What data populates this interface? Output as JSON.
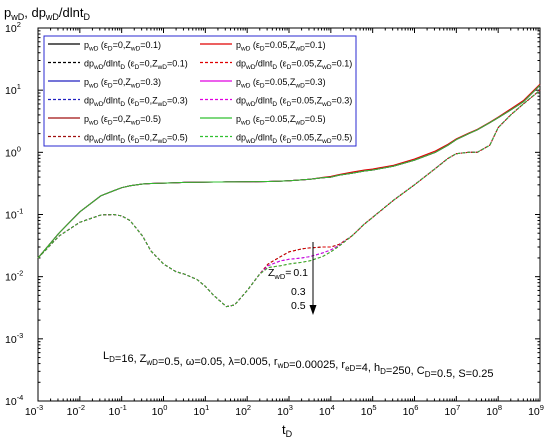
{
  "chart_data": {
    "type": "line",
    "title": "",
    "ylabel_main": "p",
    "ylabel_sub1": "wD",
    "ylabel_mid": ", dp",
    "ylabel_sub2": "wD",
    "ylabel_tail": "/dlnt",
    "ylabel_sub3": "D",
    "xlabel_main": "t",
    "xlabel_sub": "D",
    "x_scale": "log",
    "y_scale": "log",
    "xlim": [
      0.001,
      1000000000
    ],
    "ylim": [
      0.0001,
      100
    ],
    "x_tick_exponents": [
      "-3",
      "-2",
      "-1",
      "0",
      "1",
      "2",
      "3",
      "4",
      "5",
      "6",
      "7",
      "8",
      "9"
    ],
    "y_tick_exponents": [
      "2",
      "1",
      "0",
      "-1",
      "-2",
      "-3",
      "-4"
    ],
    "legend_placement": "top-left",
    "legend": [
      {
        "label": "p_wD (ε_D=0,Z_wD=0.1)",
        "color": "#000000",
        "dash": "solid"
      },
      {
        "label": "p_wD (ε_D=0.05,Z_wD=0.1)",
        "color": "#e00000",
        "dash": "solid"
      },
      {
        "label": "dp_wD/dlnt_D (ε_D=0,Z_wD=0.1)",
        "color": "#000000",
        "dash": "dashed"
      },
      {
        "label": "dp_wD/dlnt_D (ε_D=0.05,Z_wD=0.1)",
        "color": "#e00000",
        "dash": "dashed"
      },
      {
        "label": "p_wD (ε_D=0,Z_wD=0.3)",
        "color": "#2020c0",
        "dash": "solid"
      },
      {
        "label": "p_wD (ε_D=0.05,Z_wD=0.3)",
        "color": "#e000e0",
        "dash": "solid"
      },
      {
        "label": "dp_wD/dlnt_D (ε_D=0,Z_wD=0.3)",
        "color": "#2020c0",
        "dash": "dashed"
      },
      {
        "label": "dp_wD/dlnt_D (ε_D=0.05,Z_wD=0.3)",
        "color": "#e000e0",
        "dash": "dashed"
      },
      {
        "label": "p_wD (ε_D=0,Z_wD=0.5)",
        "color": "#a01010",
        "dash": "solid"
      },
      {
        "label": "p_wD (ε_D=0.05,Z_wD=0.5)",
        "color": "#30c030",
        "dash": "solid"
      },
      {
        "label": "dp_wD/dlnt_D (ε_D=0,Z_wD=0.5)",
        "color": "#a01010",
        "dash": "dashed"
      },
      {
        "label": "dp_wD/dlnt_D (ε_D=0.05,Z_wD=0.5)",
        "color": "#30c030",
        "dash": "dashed"
      }
    ],
    "legend_rows": [
      [
        {
          "a": "p",
          "b": "wD",
          "c": " (ε",
          "d": "D",
          "e": "=0,Z",
          "f": "wD",
          "g": "=0.1)"
        },
        {
          "a": "p",
          "b": "wD",
          "c": " (ε",
          "d": "D",
          "e": "=0.05,Z",
          "f": "wD",
          "g": "=0.1)"
        }
      ],
      [
        {
          "a": "dp",
          "b": "wD",
          "c": "/dlnt",
          "d": "D",
          "e": " (ε",
          "f": "D",
          "g": "=0,Z",
          "h": "wD",
          "i": "=0.1)"
        },
        {
          "a": "dp",
          "b": "wD",
          "c": "/dlnt",
          "d": "D",
          "e": " (ε",
          "f": "D",
          "g": "=0.05,Z",
          "h": "wD",
          "i": "=0.1)"
        }
      ],
      [
        {
          "a": "p",
          "b": "wD",
          "c": " (ε",
          "d": "D",
          "e": "=0,Z",
          "f": "wD",
          "g": "=0.3)"
        },
        {
          "a": "p",
          "b": "wD",
          "c": " (ε",
          "d": "D",
          "e": "=0.05,Z",
          "f": "wD",
          "g": "=0.3)"
        }
      ],
      [
        {
          "a": "dp",
          "b": "wD",
          "c": "/dlnt",
          "d": "D",
          "e": " (ε",
          "f": "D",
          "g": "=0,Z",
          "h": "wD",
          "i": "=0.3)"
        },
        {
          "a": "dp",
          "b": "wD",
          "c": "/dlnt",
          "d": "D",
          "e": " (ε",
          "f": "D",
          "g": "=0.05,Z",
          "h": "wD",
          "i": "=0.3)"
        }
      ],
      [
        {
          "a": "p",
          "b": "wD",
          "c": " (ε",
          "d": "D",
          "e": "=0,Z",
          "f": "wD",
          "g": "=0.5)"
        },
        {
          "a": "p",
          "b": "wD",
          "c": " (ε",
          "d": "D",
          "e": "=0.05,Z",
          "f": "wD",
          "g": "=0.5)"
        }
      ],
      [
        {
          "a": "dp",
          "b": "wD",
          "c": "/dlnt",
          "d": "D",
          "e": " (ε",
          "f": "D",
          "g": "=0,Z",
          "h": "wD",
          "i": "=0.5)"
        },
        {
          "a": "dp",
          "b": "wD",
          "c": "/dlnt",
          "d": "D",
          "e": " (ε",
          "f": "D",
          "g": "=0.05,Z",
          "h": "wD",
          "i": "=0.5)"
        }
      ]
    ],
    "annotation_zwd": {
      "label": "Z",
      "sub": "wD",
      "eq": "=",
      "values": [
        "0.1",
        "0.3",
        "0.5"
      ]
    },
    "params_text": [
      {
        "t": "L",
        "s": "D"
      },
      {
        "t": "=16, Z",
        "s": "wD"
      },
      {
        "t": "=0.5, ω=0.05, λ=0.005, r",
        "s": "wD"
      },
      {
        "t": "=0.00025, r",
        "s": "eD"
      },
      {
        "t": "=4, h",
        "s": "D"
      },
      {
        "t": "=250, C",
        "s": "D"
      },
      {
        "t": "=0.5, S=0.25",
        "s": ""
      }
    ],
    "series_x_log10": [
      -3,
      -2.5,
      -2,
      -1.5,
      -1.2,
      -1,
      -0.8,
      -0.5,
      -0.3,
      0,
      0.3,
      0.5,
      0.8,
      1,
      1.2,
      1.4,
      1.5,
      1.7,
      2,
      2.3,
      2.5,
      2.8,
      3,
      3.3,
      3.5,
      3.8,
      4,
      4.2,
      4.5,
      4.8,
      5,
      5.5,
      6,
      6.5,
      6.8,
      7,
      7.3,
      7.5,
      7.8,
      8,
      8.3,
      8.6,
      9
    ],
    "series": [
      {
        "name": "p_wD (ε_D=0,Z_wD=0.1)",
        "color": "#000000",
        "dash": "solid",
        "y": [
          0.02,
          0.05,
          0.11,
          0.2,
          0.24,
          0.27,
          0.29,
          0.31,
          0.315,
          0.32,
          0.325,
          0.328,
          0.33,
          0.332,
          0.333,
          0.333,
          0.334,
          0.335,
          0.336,
          0.338,
          0.34,
          0.345,
          0.35,
          0.36,
          0.37,
          0.39,
          0.4,
          0.43,
          0.46,
          0.5,
          0.52,
          0.6,
          0.75,
          1.0,
          1.3,
          1.6,
          2.0,
          2.3,
          3.0,
          3.6,
          4.8,
          6.5,
          12
        ]
      },
      {
        "name": "p_wD (ε_D=0.05,Z_wD=0.1)",
        "color": "#e00000",
        "dash": "solid",
        "y": [
          0.02,
          0.05,
          0.11,
          0.2,
          0.24,
          0.27,
          0.29,
          0.31,
          0.315,
          0.32,
          0.325,
          0.328,
          0.33,
          0.332,
          0.333,
          0.333,
          0.334,
          0.335,
          0.336,
          0.338,
          0.34,
          0.345,
          0.35,
          0.36,
          0.37,
          0.395,
          0.41,
          0.44,
          0.48,
          0.52,
          0.54,
          0.62,
          0.78,
          1.05,
          1.35,
          1.65,
          2.05,
          2.35,
          3.05,
          3.7,
          5.0,
          6.8,
          12.5
        ]
      },
      {
        "name": "dp_wD/dlnt_D (ε_D=0,Z_wD=0.1)",
        "color": "#000000",
        "dash": "dashed",
        "y": [
          0.02,
          0.045,
          0.075,
          0.098,
          0.1,
          0.095,
          0.08,
          0.045,
          0.026,
          0.016,
          0.012,
          0.011,
          0.009,
          0.007,
          0.005,
          0.0038,
          0.0033,
          0.0035,
          0.006,
          0.011,
          0.016,
          0.021,
          0.025,
          0.028,
          0.029,
          0.03,
          0.03,
          0.033,
          0.045,
          0.07,
          0.09,
          0.17,
          0.3,
          0.55,
          0.8,
          0.95,
          1.0,
          1.0,
          1.3,
          2.5,
          4.0,
          6.0,
          10
        ]
      },
      {
        "name": "dp_wD/dlnt_D (ε_D=0.05,Z_wD=0.1)",
        "color": "#e00000",
        "dash": "dashed",
        "y": [
          0.02,
          0.045,
          0.075,
          0.098,
          0.1,
          0.095,
          0.08,
          0.045,
          0.026,
          0.016,
          0.012,
          0.011,
          0.009,
          0.007,
          0.005,
          0.0038,
          0.0033,
          0.0035,
          0.006,
          0.011,
          0.016,
          0.021,
          0.025,
          0.028,
          0.029,
          0.03,
          0.03,
          0.033,
          0.045,
          0.07,
          0.09,
          0.17,
          0.3,
          0.55,
          0.8,
          0.95,
          1.0,
          1.0,
          1.3,
          2.5,
          4.0,
          6.0,
          10
        ]
      },
      {
        "name": "p_wD (ε_D=0,Z_wD=0.3)",
        "color": "#2020c0",
        "dash": "solid",
        "y": [
          0.02,
          0.05,
          0.11,
          0.2,
          0.24,
          0.27,
          0.29,
          0.31,
          0.315,
          0.32,
          0.325,
          0.328,
          0.33,
          0.332,
          0.333,
          0.333,
          0.334,
          0.335,
          0.336,
          0.338,
          0.34,
          0.345,
          0.35,
          0.36,
          0.37,
          0.39,
          0.4,
          0.43,
          0.46,
          0.5,
          0.52,
          0.6,
          0.75,
          1.0,
          1.3,
          1.6,
          2.0,
          2.3,
          3.0,
          3.6,
          4.8,
          6.5,
          12
        ]
      },
      {
        "name": "p_wD (ε_D=0.05,Z_wD=0.3)",
        "color": "#e000e0",
        "dash": "solid",
        "y": [
          0.02,
          0.05,
          0.11,
          0.2,
          0.24,
          0.27,
          0.29,
          0.31,
          0.315,
          0.32,
          0.325,
          0.328,
          0.33,
          0.332,
          0.333,
          0.333,
          0.334,
          0.335,
          0.336,
          0.338,
          0.34,
          0.345,
          0.35,
          0.36,
          0.37,
          0.39,
          0.4,
          0.43,
          0.46,
          0.5,
          0.52,
          0.6,
          0.75,
          1.0,
          1.3,
          1.6,
          2.0,
          2.3,
          3.0,
          3.6,
          4.8,
          6.5,
          12
        ]
      },
      {
        "name": "dp_wD/dlnt_D (ε_D=0,Z_wD=0.3)",
        "color": "#2020c0",
        "dash": "dashed",
        "y": [
          0.02,
          0.045,
          0.075,
          0.098,
          0.1,
          0.095,
          0.08,
          0.045,
          0.026,
          0.016,
          0.012,
          0.011,
          0.009,
          0.007,
          0.005,
          0.0038,
          0.0033,
          0.0035,
          0.006,
          0.011,
          0.015,
          0.018,
          0.019,
          0.02,
          0.021,
          0.024,
          0.027,
          0.032,
          0.045,
          0.07,
          0.09,
          0.17,
          0.3,
          0.55,
          0.8,
          0.95,
          1.0,
          1.0,
          1.3,
          2.5,
          4.0,
          6.0,
          10
        ]
      },
      {
        "name": "dp_wD/dlnt_D (ε_D=0.05,Z_wD=0.3)",
        "color": "#e000e0",
        "dash": "dashed",
        "y": [
          0.02,
          0.045,
          0.075,
          0.098,
          0.1,
          0.095,
          0.08,
          0.045,
          0.026,
          0.016,
          0.012,
          0.011,
          0.009,
          0.007,
          0.005,
          0.0038,
          0.0033,
          0.0035,
          0.006,
          0.011,
          0.015,
          0.018,
          0.019,
          0.02,
          0.021,
          0.024,
          0.027,
          0.032,
          0.045,
          0.07,
          0.09,
          0.17,
          0.3,
          0.55,
          0.8,
          0.95,
          1.0,
          1.0,
          1.3,
          2.5,
          4.0,
          6.0,
          10
        ]
      },
      {
        "name": "p_wD (ε_D=0,Z_wD=0.5)",
        "color": "#a01010",
        "dash": "solid",
        "y": [
          0.02,
          0.05,
          0.11,
          0.2,
          0.24,
          0.27,
          0.29,
          0.31,
          0.315,
          0.32,
          0.325,
          0.328,
          0.33,
          0.332,
          0.333,
          0.333,
          0.334,
          0.335,
          0.336,
          0.338,
          0.34,
          0.345,
          0.35,
          0.36,
          0.37,
          0.39,
          0.4,
          0.43,
          0.46,
          0.5,
          0.52,
          0.6,
          0.75,
          1.0,
          1.3,
          1.6,
          2.0,
          2.3,
          3.0,
          3.6,
          4.8,
          6.5,
          12
        ]
      },
      {
        "name": "p_wD (ε_D=0.05,Z_wD=0.5)",
        "color": "#30c030",
        "dash": "solid",
        "y": [
          0.02,
          0.05,
          0.11,
          0.2,
          0.24,
          0.27,
          0.29,
          0.31,
          0.315,
          0.32,
          0.325,
          0.328,
          0.33,
          0.332,
          0.333,
          0.333,
          0.334,
          0.335,
          0.336,
          0.338,
          0.34,
          0.345,
          0.35,
          0.36,
          0.37,
          0.39,
          0.4,
          0.43,
          0.46,
          0.5,
          0.52,
          0.6,
          0.75,
          1.0,
          1.3,
          1.6,
          2.0,
          2.3,
          3.0,
          3.6,
          4.8,
          6.5,
          12
        ]
      },
      {
        "name": "dp_wD/dlnt_D (ε_D=0,Z_wD=0.5)",
        "color": "#a01010",
        "dash": "dashed",
        "y": [
          0.02,
          0.045,
          0.075,
          0.098,
          0.1,
          0.095,
          0.08,
          0.045,
          0.026,
          0.016,
          0.012,
          0.011,
          0.009,
          0.007,
          0.005,
          0.0038,
          0.0033,
          0.0035,
          0.006,
          0.011,
          0.014,
          0.015,
          0.016,
          0.017,
          0.018,
          0.021,
          0.025,
          0.031,
          0.045,
          0.07,
          0.09,
          0.17,
          0.3,
          0.55,
          0.8,
          0.95,
          1.0,
          1.0,
          1.3,
          2.5,
          4.0,
          6.0,
          10
        ]
      },
      {
        "name": "dp_wD/dlnt_D (ε_D=0.05,Z_wD=0.5)",
        "color": "#30c030",
        "dash": "dashed",
        "y": [
          0.02,
          0.045,
          0.075,
          0.098,
          0.1,
          0.095,
          0.08,
          0.045,
          0.026,
          0.016,
          0.012,
          0.011,
          0.009,
          0.007,
          0.005,
          0.0038,
          0.0033,
          0.0035,
          0.006,
          0.011,
          0.014,
          0.015,
          0.016,
          0.017,
          0.018,
          0.021,
          0.025,
          0.031,
          0.045,
          0.07,
          0.09,
          0.17,
          0.3,
          0.55,
          0.8,
          0.95,
          1.0,
          1.0,
          1.3,
          2.5,
          4.0,
          6.0,
          10
        ]
      }
    ]
  }
}
